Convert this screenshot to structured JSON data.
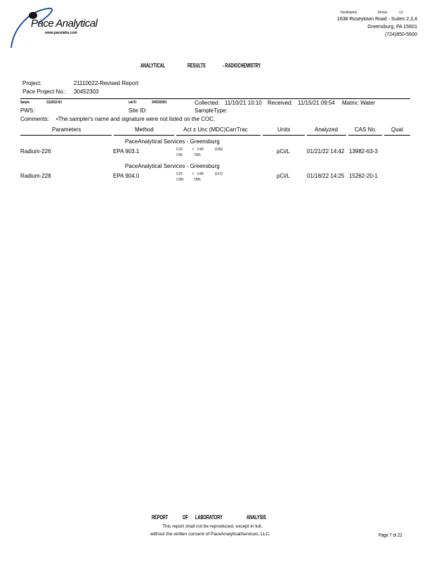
{
  "header": {
    "logo_text": "Pace Analytical",
    "logo_url": "www.pacelabs.com",
    "company": [
      "PaceAnalytical",
      "Services",
      "LLC"
    ],
    "address1": "1638 Roseytown Road - Suites 2,3,4",
    "address2": "Greensburg, PA 15601",
    "phone": "(724)850-5600",
    "brand_color": "#1f4fa0"
  },
  "title": [
    "ANALYTICAL",
    "RESULTS",
    "- RADIOCHEMISTRY"
  ],
  "project": {
    "label": "Project:",
    "value": "21110022-Revised Report",
    "no_label": "Pace Project No.:",
    "no_value": "30452303"
  },
  "sample": {
    "sample_label": "Sample:",
    "sample_value": "21110022-001",
    "lab_label": "Lab ID:",
    "lab_value": "30452303001",
    "collected_label": "Collected:",
    "collected_value": "11/10/21 10:10",
    "received_label": "Received:",
    "received_value": "11/15/21 09:54",
    "matrix": "Matrix: Water",
    "pws": "PWS:",
    "site": "Site ID:",
    "sampletype": "SampleType:",
    "comments_label": "Comments:",
    "comments_value": "•The sampler's name and signature were not listed on the COC."
  },
  "table": {
    "headers": [
      "Parameters",
      "Method",
      "Act ± Unc (MDC)CarrTrac",
      "Units",
      "Analyzed",
      "CAS No.",
      "Qual"
    ],
    "rows": [
      {
        "group": "PaceAnalytical Services - Greensburg",
        "param": "Radium-226",
        "method": "EPA 903.1",
        "act": "0.120",
        "pm": "±",
        "unc": "0.450",
        "mdc": "(0.550)",
        "carr": "C:NA",
        "trac": "T:96%",
        "units": "pCi/L",
        "analyzed": "01/21/22 14:42",
        "cas": "13982-63-3",
        "qual": ""
      },
      {
        "group": "PaceAnalytical Services - Greensburg",
        "param": "Radium-228",
        "method": "EPA 904.0",
        "act": "0.375",
        "pm": "±",
        "unc": "0.404",
        "mdc": "(0.571)",
        "carr": "C:99%",
        "trac": "T:89%",
        "units": "pCi/L",
        "analyzed": "01/18/22 14:25",
        "cas": "15262-20-1",
        "qual": ""
      }
    ]
  },
  "footer": {
    "title": [
      "REPORT",
      "OF",
      "LABORATORY",
      "ANALYSIS"
    ],
    "line1": "This report shall not be reproduced, except in full,",
    "line2": "without the written consent of PaceAnalyticalServices, LLC.",
    "page": "Page 7 of 22"
  }
}
